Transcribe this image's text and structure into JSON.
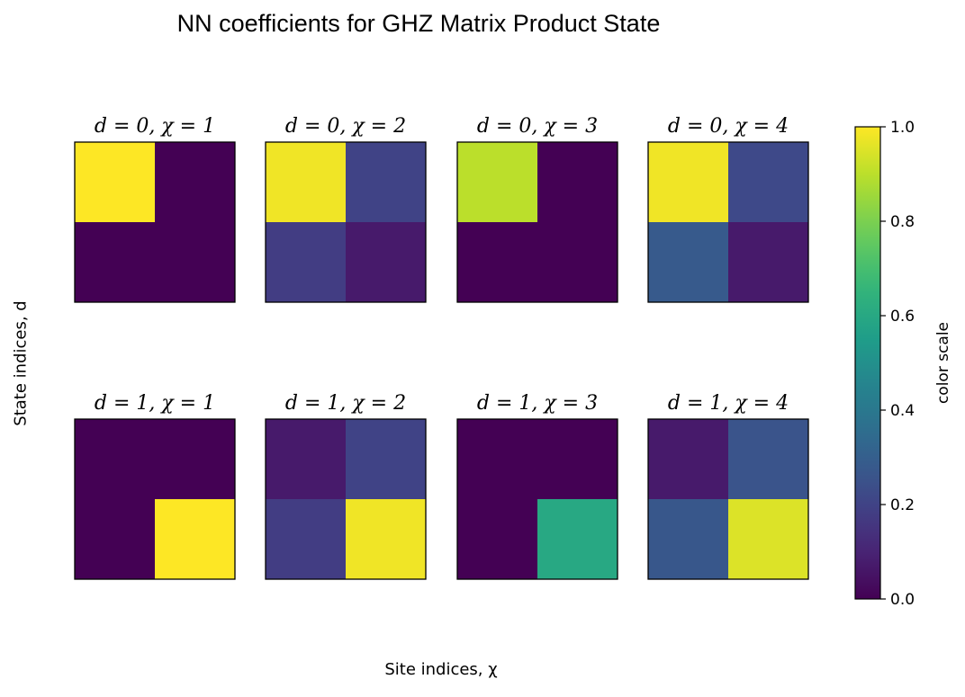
{
  "chart_data": {
    "type": "heatmap",
    "title": "NN coefficients for GHZ Matrix Product State",
    "xlabel": "Site indices, χ",
    "ylabel": "State indices, d",
    "colorbar": {
      "label": "color scale",
      "range": [
        0.0,
        1.0
      ],
      "ticks": [
        "0.0",
        "0.2",
        "0.4",
        "0.6",
        "0.8",
        "1.0"
      ],
      "colormap": "viridis"
    },
    "panels": [
      {
        "title": "d = 0, χ = 1",
        "values": [
          [
            1.0,
            0.0
          ],
          [
            0.0,
            0.0
          ]
        ]
      },
      {
        "title": "d = 0, χ = 2",
        "values": [
          [
            0.98,
            0.2
          ],
          [
            0.18,
            0.07
          ]
        ]
      },
      {
        "title": "d = 0, χ = 3",
        "values": [
          [
            0.9,
            0.0
          ],
          [
            0.0,
            0.0
          ]
        ]
      },
      {
        "title": "d = 0, χ = 4",
        "values": [
          [
            0.98,
            0.22
          ],
          [
            0.28,
            0.07
          ]
        ]
      },
      {
        "title": "d = 1, χ = 1",
        "values": [
          [
            0.0,
            0.0
          ],
          [
            0.0,
            1.0
          ]
        ]
      },
      {
        "title": "d = 1, χ = 2",
        "values": [
          [
            0.07,
            0.2
          ],
          [
            0.18,
            0.98
          ]
        ]
      },
      {
        "title": "d = 1, χ = 3",
        "values": [
          [
            0.0,
            0.0
          ],
          [
            0.0,
            0.6
          ]
        ]
      },
      {
        "title": "d = 1, χ = 4",
        "values": [
          [
            0.07,
            0.26
          ],
          [
            0.27,
            0.95
          ]
        ]
      }
    ]
  }
}
